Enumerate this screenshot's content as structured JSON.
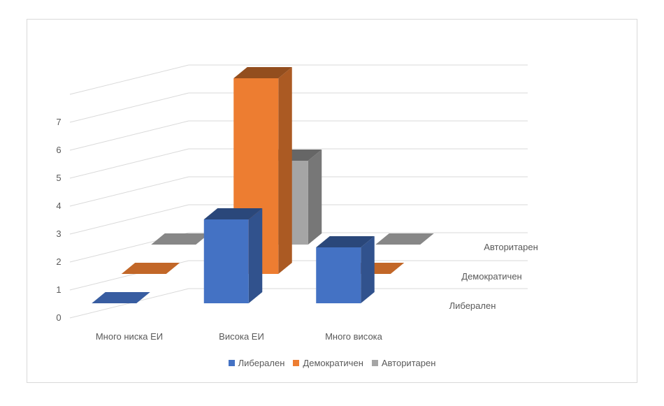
{
  "chart_data": {
    "type": "bar",
    "title": "",
    "categories": [
      "Много ниска ЕИ",
      "Висока ЕИ",
      "Много висока"
    ],
    "series": [
      {
        "name": "Либерален",
        "values": [
          0,
          3,
          2
        ],
        "color": "#4472C4"
      },
      {
        "name": "Демократичен",
        "values": [
          0,
          7,
          0
        ],
        "color": "#ED7D31"
      },
      {
        "name": "Авторитарен",
        "values": [
          0,
          3,
          0
        ],
        "color": "#A5A5A5"
      }
    ],
    "ylim": [
      0,
      7
    ],
    "y_ticks": [
      "0",
      "1",
      "2",
      "3",
      "4",
      "5",
      "6",
      "7"
    ],
    "depth_labels": [
      "Либерален",
      "Демократичен",
      "Авторитарен"
    ],
    "grid": true,
    "legend_position": "bottom"
  }
}
